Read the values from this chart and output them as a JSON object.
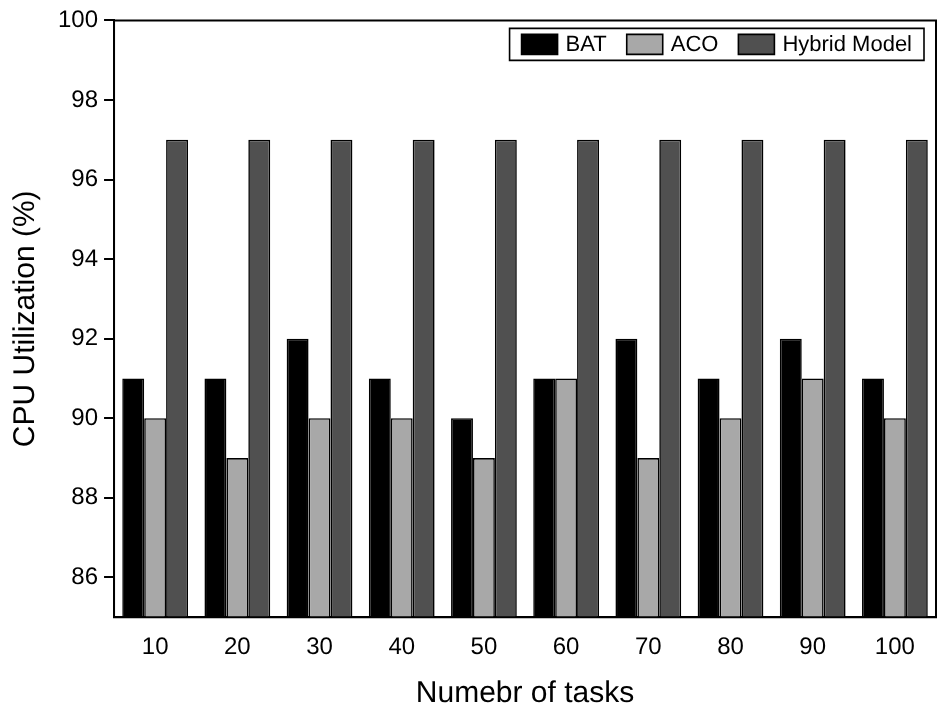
{
  "chart_data": {
    "type": "bar",
    "xlabel": "Numebr of tasks",
    "ylabel": "CPU Utilization (%)",
    "categories": [
      "10",
      "20",
      "30",
      "40",
      "50",
      "60",
      "70",
      "80",
      "90",
      "100"
    ],
    "series": [
      {
        "name": "BAT",
        "color": "#000000",
        "values": [
          91,
          91,
          92,
          91,
          90,
          91,
          92,
          91,
          92,
          91
        ]
      },
      {
        "name": "ACO",
        "color": "#a8a8a8",
        "values": [
          90,
          89,
          90,
          90,
          89,
          91,
          89,
          90,
          91,
          90
        ]
      },
      {
        "name": "Hybrid Model",
        "color": "#505050",
        "values": [
          97,
          97,
          97,
          97,
          97,
          97,
          97,
          97,
          97,
          97
        ]
      }
    ],
    "ylim": [
      85,
      100
    ],
    "yticks": [
      86,
      88,
      90,
      92,
      94,
      96,
      98,
      100
    ],
    "grid": false,
    "legend": "top right"
  }
}
